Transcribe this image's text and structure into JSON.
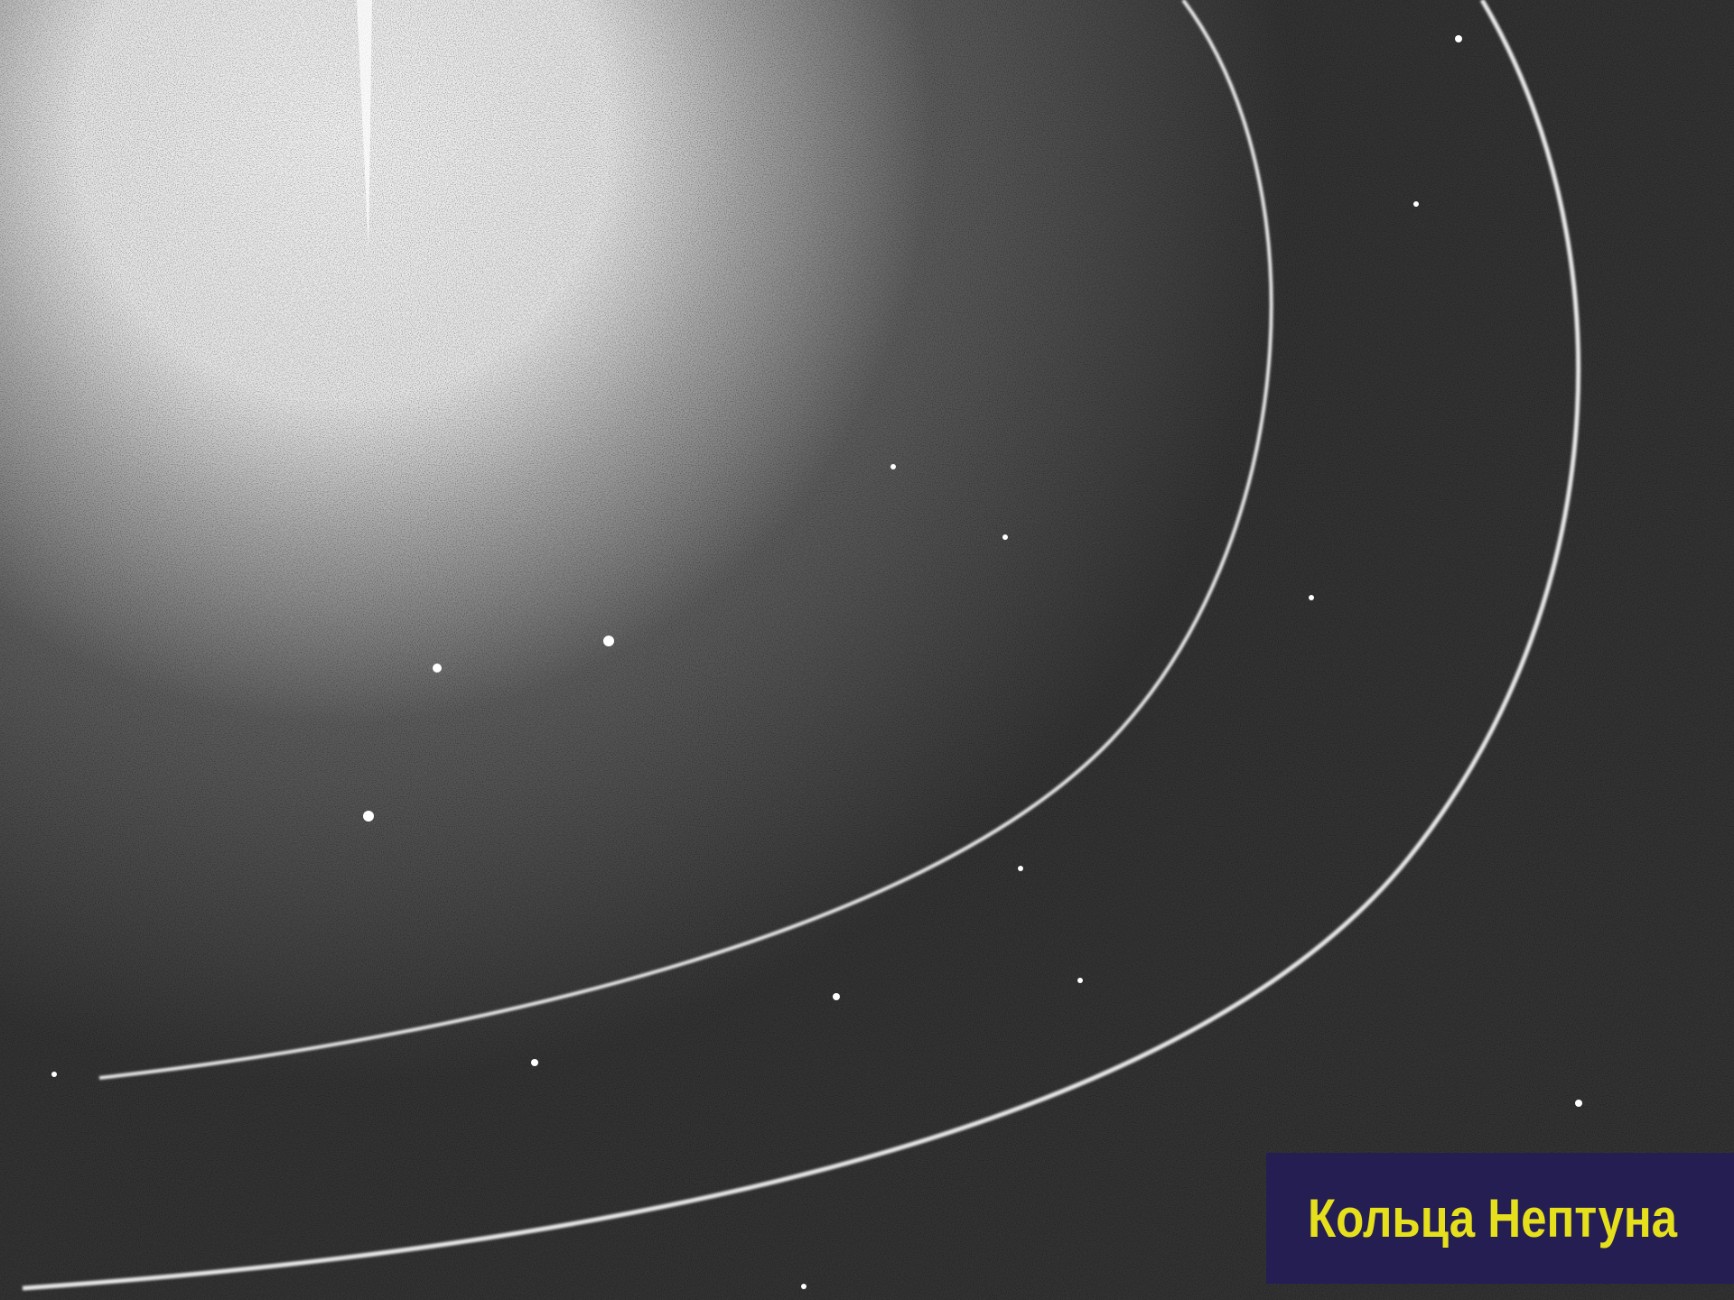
{
  "caption": "Кольца Нептуна"
}
